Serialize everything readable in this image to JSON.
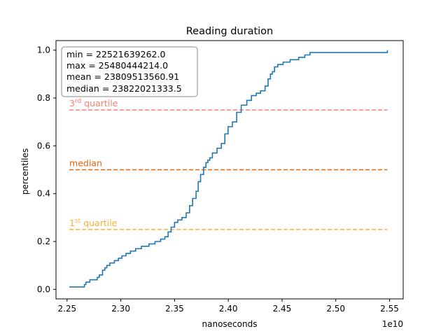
{
  "chart_data": {
    "type": "line",
    "title": "Reading duration",
    "xlabel": "nanoseconds",
    "ylabel": "percentiles",
    "x_scale_label": "1e10",
    "x_tick_labels": [
      "2.25",
      "2.30",
      "2.35",
      "2.40",
      "2.45",
      "2.50",
      "2.55"
    ],
    "x_ticks": [
      2.25,
      2.3,
      2.35,
      2.4,
      2.45,
      2.5,
      2.55
    ],
    "y_tick_labels": [
      "0.0",
      "0.2",
      "0.4",
      "0.6",
      "0.8",
      "1.0"
    ],
    "y_ticks": [
      0.0,
      0.2,
      0.4,
      0.6,
      0.8,
      1.0
    ],
    "xlim": [
      2.2397,
      2.5627
    ],
    "ylim": [
      -0.04,
      1.04
    ],
    "grid": false,
    "stats_box": {
      "min": "min = 22521639262.0",
      "max": "max = 25480444214.0",
      "mean": "mean = 23809513560.91",
      "median": "median = 23822021333.5"
    },
    "reference_lines": [
      {
        "label_base": "3",
        "label_sup": "rd",
        "label_tail": " quartile",
        "y": 0.75,
        "color": "#fa8072"
      },
      {
        "label_base": "median",
        "label_sup": "",
        "label_tail": "",
        "y": 0.5,
        "color": "#e8630a"
      },
      {
        "label_base": "1",
        "label_sup": "st",
        "label_tail": " quartile",
        "y": 0.25,
        "color": "#fbb03b"
      }
    ],
    "series": [
      {
        "color": "#1f77b4",
        "x": [
          2.2521,
          2.2652,
          2.2661,
          2.2675,
          2.2691,
          2.2712,
          2.2748,
          2.2781,
          2.28,
          2.283,
          2.2852,
          2.287,
          2.2898,
          2.294,
          2.2978,
          2.301,
          2.3048,
          2.309,
          2.3138,
          2.3192,
          2.3262,
          2.3318,
          2.337,
          2.341,
          2.344,
          2.3468,
          2.35,
          2.353,
          2.3568,
          2.3608,
          2.364,
          2.3668,
          2.37,
          2.372,
          2.3742,
          2.377,
          2.3792,
          2.381,
          2.3828,
          2.3852,
          2.3895,
          2.3935,
          2.3968,
          2.3998,
          2.4038,
          2.4078,
          2.412,
          2.4172,
          2.4215,
          2.426,
          2.43,
          2.4342,
          2.437,
          2.4392,
          2.441,
          2.443,
          2.446,
          2.451,
          2.4575,
          2.4655,
          2.4712,
          2.476,
          2.481,
          2.488,
          2.494,
          2.5,
          2.508,
          2.52,
          2.535,
          2.547,
          2.548
        ],
        "y": [
          0.01,
          0.01,
          0.02,
          0.03,
          0.03,
          0.04,
          0.04,
          0.05,
          0.06,
          0.08,
          0.09,
          0.1,
          0.11,
          0.12,
          0.13,
          0.14,
          0.15,
          0.16,
          0.17,
          0.18,
          0.19,
          0.2,
          0.21,
          0.22,
          0.24,
          0.26,
          0.28,
          0.29,
          0.3,
          0.32,
          0.35,
          0.38,
          0.41,
          0.45,
          0.48,
          0.51,
          0.53,
          0.54,
          0.55,
          0.57,
          0.59,
          0.61,
          0.65,
          0.68,
          0.7,
          0.74,
          0.77,
          0.79,
          0.81,
          0.82,
          0.83,
          0.85,
          0.88,
          0.9,
          0.91,
          0.93,
          0.94,
          0.95,
          0.96,
          0.97,
          0.98,
          0.99,
          0.99,
          0.99,
          0.99,
          0.99,
          0.99,
          0.99,
          0.99,
          0.99,
          1.0
        ]
      }
    ]
  }
}
